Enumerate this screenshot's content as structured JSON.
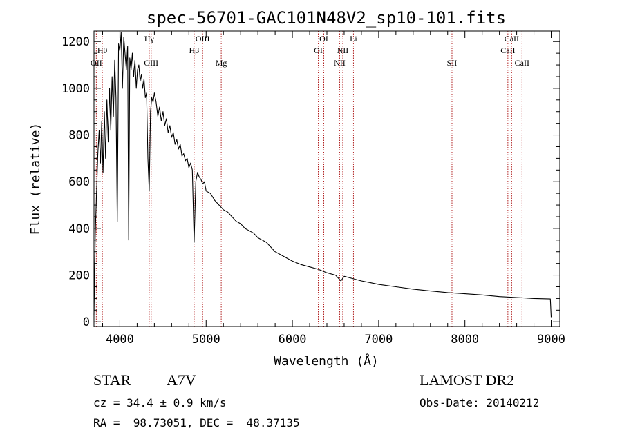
{
  "chart_data": {
    "type": "line",
    "title": "spec-56701-GAC101N48V2_sp10-101.fits",
    "xlabel": "Wavelength (Å)",
    "ylabel": "Flux (relative)",
    "xlim": [
      3700,
      9100
    ],
    "ylim": [
      -20,
      1245
    ],
    "xticks": [
      4000,
      5000,
      6000,
      7000,
      8000,
      9000
    ],
    "yticks": [
      0,
      200,
      400,
      600,
      800,
      1000,
      1200
    ],
    "grid": false,
    "line_color": "#000000",
    "marker_color": "#b22222",
    "series": [
      {
        "x": [
          3700,
          3715,
          3730,
          3745,
          3760,
          3775,
          3790,
          3805,
          3820,
          3835,
          3850,
          3865,
          3880,
          3895,
          3910,
          3925,
          3940,
          3955,
          3970,
          3985,
          4000,
          4015,
          4030,
          4045,
          4060,
          4075,
          4090,
          4102,
          4115,
          4130,
          4145,
          4160,
          4175,
          4190,
          4205,
          4220,
          4235,
          4250,
          4265,
          4280,
          4295,
          4310,
          4325,
          4340,
          4355,
          4370,
          4385,
          4400,
          4420,
          4440,
          4460,
          4480,
          4500,
          4520,
          4540,
          4560,
          4580,
          4600,
          4620,
          4640,
          4660,
          4680,
          4700,
          4720,
          4740,
          4760,
          4780,
          4800,
          4820,
          4840,
          4861,
          4880,
          4900,
          4920,
          4940,
          4960,
          4980,
          5000,
          5050,
          5100,
          5150,
          5200,
          5250,
          5300,
          5350,
          5400,
          5450,
          5500,
          5550,
          5600,
          5650,
          5700,
          5750,
          5800,
          5850,
          5900,
          5950,
          6000,
          6100,
          6200,
          6300,
          6400,
          6500,
          6563,
          6600,
          6700,
          6800,
          6900,
          7000,
          7200,
          7400,
          7600,
          7800,
          8000,
          8200,
          8400,
          8600,
          8800,
          8990,
          9000
        ],
        "y": [
          30,
          380,
          550,
          720,
          820,
          680,
          860,
          640,
          900,
          700,
          950,
          770,
          1000,
          820,
          1050,
          880,
          1120,
          960,
          430,
          1190,
          1160,
          1240,
          1000,
          1220,
          1150,
          1080,
          1180,
          350,
          1130,
          1080,
          1150,
          1050,
          1120,
          1000,
          1080,
          1100,
          1030,
          1060,
          1000,
          1040,
          960,
          980,
          700,
          560,
          900,
          960,
          940,
          980,
          940,
          880,
          920,
          860,
          900,
          840,
          870,
          810,
          840,
          790,
          810,
          760,
          780,
          740,
          760,
          710,
          720,
          690,
          700,
          660,
          680,
          650,
          340,
          600,
          640,
          620,
          610,
          590,
          600,
          560,
          550,
          520,
          500,
          480,
          470,
          450,
          430,
          420,
          400,
          390,
          380,
          360,
          350,
          340,
          320,
          300,
          290,
          280,
          270,
          260,
          245,
          235,
          225,
          210,
          200,
          175,
          195,
          185,
          175,
          168,
          160,
          150,
          140,
          132,
          125,
          120,
          115,
          108,
          104,
          100,
          98,
          20
        ]
      }
    ],
    "annotations": [
      {
        "label": "OII",
        "x": 3727,
        "row": 3
      },
      {
        "label": "Hθ",
        "x": 3797,
        "row": 2
      },
      {
        "label": "Hγ",
        "x": 4340,
        "row": 1
      },
      {
        "label": "OIII",
        "x": 4363,
        "row": 3
      },
      {
        "label": "Hβ",
        "x": 4861,
        "row": 2
      },
      {
        "label": "OIII",
        "x": 4959,
        "row": 1
      },
      {
        "label": "Mg",
        "x": 5175,
        "row": 3
      },
      {
        "label": "OI",
        "x": 6300,
        "row": 2
      },
      {
        "label": "OI",
        "x": 6364,
        "row": 1
      },
      {
        "label": "NII",
        "x": 6548,
        "row": 3
      },
      {
        "label": "NII",
        "x": 6584,
        "row": 2
      },
      {
        "label": "Li",
        "x": 6708,
        "row": 1
      },
      {
        "label": "SII",
        "x": 7850,
        "row": 3
      },
      {
        "label": "CaII",
        "x": 8498,
        "row": 2
      },
      {
        "label": "CaII",
        "x": 8542,
        "row": 1
      },
      {
        "label": "CaII",
        "x": 8662,
        "row": 3
      }
    ]
  },
  "info": {
    "object_class": "STAR",
    "subclass": "A7V",
    "survey": "LAMOST DR2",
    "cz": "cz = 34.4 ± 0.9 km/s",
    "obs_date": "Obs-Date: 20140212",
    "coords": "RA =  98.73051, DEC =  48.37135"
  }
}
